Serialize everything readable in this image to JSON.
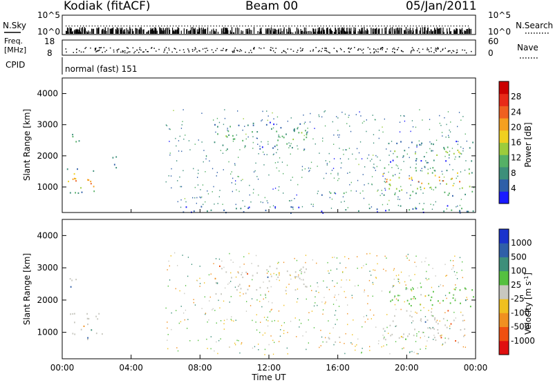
{
  "header": {
    "station": "Kodiak (fitACF)",
    "beam": "Beam 00",
    "date": "05/Jan/2011"
  },
  "status_panel": {
    "nsky_label": "N.Sky",
    "nsearch_label": "N.Search",
    "nsky_ticks": [
      "10^5",
      "10^0"
    ],
    "nsearch_ticks": [
      "10^5",
      "10^0"
    ],
    "freq_label_1": "Freq.",
    "freq_label_2": "[MHz]",
    "freq_ticks": [
      "18",
      "8"
    ],
    "nave_label": "Nave",
    "nave_ticks": [
      "60",
      "0"
    ],
    "cpid_label": "CPID",
    "cpid_value": "normal (fast) 151"
  },
  "chart_data": [
    {
      "type": "heatmap",
      "panel": "power",
      "ylabel": "Slant Range [km]",
      "xlabel": "",
      "ylim": [
        180,
        4500
      ],
      "y_ticks": [
        "4000",
        "3000",
        "2000",
        "1000"
      ],
      "y_tick_values": [
        4000,
        3000,
        2000,
        1000
      ],
      "colorbar": {
        "label": "Power [dB]",
        "range": [
          0,
          32
        ],
        "ticks": [
          "28",
          "24",
          "20",
          "16",
          "12",
          "8",
          "4"
        ],
        "tick_values": [
          28,
          24,
          20,
          16,
          12,
          8,
          4
        ],
        "colors": [
          "#1a1aff",
          "#2f5fa8",
          "#3d8f7a",
          "#55b066",
          "#9ccc3c",
          "#f0d020",
          "#f5a020",
          "#ef6020",
          "#e82a18",
          "#cc0000"
        ]
      },
      "regions": [
        {
          "t0": 0.1,
          "t1": 2.3,
          "r0": 800,
          "r1": 1600,
          "power": 17
        },
        {
          "t0": 0.4,
          "t1": 1.4,
          "r0": 2400,
          "r1": 2750,
          "power": 9
        },
        {
          "t0": 2.7,
          "t1": 3.2,
          "r0": 1500,
          "r1": 2200,
          "power": 6
        },
        {
          "t0": 8.8,
          "t1": 14.2,
          "r0": 2200,
          "r1": 3100,
          "power": 9
        },
        {
          "t0": 14.3,
          "t1": 16.5,
          "r0": 750,
          "r1": 900,
          "power": 8
        },
        {
          "t0": 18.6,
          "t1": 23.9,
          "r0": 700,
          "r1": 1700,
          "power": 15
        },
        {
          "t0": 18.8,
          "t1": 23.9,
          "r0": 1800,
          "r1": 2500,
          "power": 10
        },
        {
          "t0": 6.5,
          "t1": 23.9,
          "r0": 180,
          "r1": 420,
          "power": 6
        }
      ]
    },
    {
      "type": "heatmap",
      "panel": "velocity",
      "ylabel": "Slant Range [km]",
      "xlabel": "Time UT",
      "ylim": [
        180,
        4500
      ],
      "xlim": [
        0,
        24
      ],
      "y_ticks": [
        "4000",
        "3000",
        "2000",
        "1000"
      ],
      "y_tick_values": [
        4000,
        3000,
        2000,
        1000
      ],
      "x_ticks": [
        "00:00",
        "04:00",
        "08:00",
        "12:00",
        "16:00",
        "20:00",
        "00:00"
      ],
      "x_tick_values": [
        0,
        4,
        8,
        12,
        16,
        20,
        24
      ],
      "colorbar": {
        "label": "Velocity [m s",
        "label_sup": "-1",
        "label_end": "]",
        "ticks": [
          "1000",
          "500",
          "100",
          "25",
          "-25",
          "-100",
          "-500",
          "-1000"
        ],
        "colors": [
          "#1a33cc",
          "#2f5fa8",
          "#3d8f7a",
          "#55c040",
          "#c8c8c0",
          "#f0c020",
          "#f09020",
          "#ef5010",
          "#e01010"
        ]
      },
      "regions": [
        {
          "t0": 0.1,
          "t1": 2.3,
          "r0": 800,
          "r1": 1600,
          "vel": 0
        },
        {
          "t0": 0.4,
          "t1": 1.4,
          "r0": 2400,
          "r1": 2750,
          "vel": 0
        },
        {
          "t0": 8.8,
          "t1": 14.2,
          "r0": 2200,
          "r1": 3100,
          "vel": 0
        },
        {
          "t0": 14.3,
          "t1": 16.5,
          "r0": 700,
          "r1": 900,
          "vel": 0
        },
        {
          "t0": 18.6,
          "t1": 23.9,
          "r0": 700,
          "r1": 1700,
          "vel": 0
        },
        {
          "t0": 18.8,
          "t1": 23.9,
          "r0": 1800,
          "r1": 2500,
          "vel": 60
        }
      ]
    }
  ]
}
